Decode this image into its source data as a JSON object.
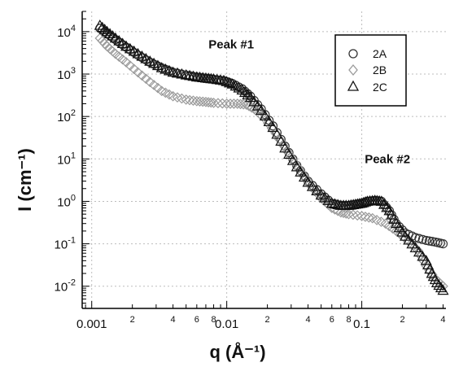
{
  "chart_data": {
    "type": "scatter",
    "title": "",
    "xlabel": "q (Å⁻¹)",
    "ylabel": "I (cm⁻¹)",
    "x_scale": "log",
    "y_scale": "log",
    "xlim": [
      0.00085,
      0.42
    ],
    "ylim": [
      0.003,
      30000
    ],
    "grid": true,
    "legend_position": "top-right",
    "x_major_ticks": [
      {
        "value": 0.001,
        "label": "0.001"
      },
      {
        "value": 0.01,
        "label": "0.01"
      },
      {
        "value": 0.1,
        "label": "0.1"
      }
    ],
    "x_minor_labels": [
      {
        "value": 0.002,
        "label": "2"
      },
      {
        "value": 0.004,
        "label": "4"
      },
      {
        "value": 0.006,
        "label": "6"
      },
      {
        "value": 0.008,
        "label": "8"
      },
      {
        "value": 0.02,
        "label": "2"
      },
      {
        "value": 0.04,
        "label": "4"
      },
      {
        "value": 0.06,
        "label": "6"
      },
      {
        "value": 0.08,
        "label": "8"
      },
      {
        "value": 0.2,
        "label": "2"
      },
      {
        "value": 0.4,
        "label": "4"
      }
    ],
    "y_ticks": [
      {
        "exp": 4,
        "label_base": "10",
        "label_exp": "4"
      },
      {
        "exp": 3,
        "label_base": "10",
        "label_exp": "3"
      },
      {
        "exp": 2,
        "label_base": "10",
        "label_exp": "2"
      },
      {
        "exp": 1,
        "label_base": "10",
        "label_exp": "1"
      },
      {
        "exp": 0,
        "label_base": "10",
        "label_exp": "0"
      },
      {
        "exp": -1,
        "label_base": "10",
        "label_exp": "-1"
      },
      {
        "exp": -2,
        "label_base": "10",
        "label_exp": "-2"
      }
    ],
    "annotations": [
      {
        "text": "Peak #1",
        "x": 0.0108,
        "y": 4000
      },
      {
        "text": "Peak #2",
        "x": 0.155,
        "y": 8
      }
    ],
    "series": [
      {
        "name": "2A",
        "marker": "circle",
        "color": "#333333",
        "points": [
          [
            0.00115,
            12000
          ],
          [
            0.0013,
            9000
          ],
          [
            0.0015,
            6500
          ],
          [
            0.0018,
            4300
          ],
          [
            0.0022,
            2800
          ],
          [
            0.0027,
            1900
          ],
          [
            0.0033,
            1400
          ],
          [
            0.004,
            1100
          ],
          [
            0.005,
            950
          ],
          [
            0.006,
            850
          ],
          [
            0.007,
            800
          ],
          [
            0.008,
            750
          ],
          [
            0.0095,
            700
          ],
          [
            0.011,
            600
          ],
          [
            0.013,
            450
          ],
          [
            0.015,
            300
          ],
          [
            0.018,
            150
          ],
          [
            0.022,
            60
          ],
          [
            0.027,
            20
          ],
          [
            0.033,
            7
          ],
          [
            0.04,
            3
          ],
          [
            0.05,
            1.5
          ],
          [
            0.06,
            0.9
          ],
          [
            0.07,
            0.8
          ],
          [
            0.08,
            0.8
          ],
          [
            0.09,
            0.85
          ],
          [
            0.1,
            0.9
          ],
          [
            0.11,
            1.0
          ],
          [
            0.125,
            1.05
          ],
          [
            0.14,
            1.0
          ],
          [
            0.16,
            0.6
          ],
          [
            0.18,
            0.3
          ],
          [
            0.21,
            0.18
          ],
          [
            0.25,
            0.14
          ],
          [
            0.3,
            0.12
          ],
          [
            0.35,
            0.11
          ],
          [
            0.4,
            0.1
          ]
        ]
      },
      {
        "name": "2B",
        "marker": "diamond",
        "color": "#9a9a9a",
        "points": [
          [
            0.00115,
            7000
          ],
          [
            0.0013,
            4500
          ],
          [
            0.0015,
            3000
          ],
          [
            0.0018,
            1900
          ],
          [
            0.0022,
            1100
          ],
          [
            0.0027,
            650
          ],
          [
            0.0033,
            400
          ],
          [
            0.004,
            300
          ],
          [
            0.005,
            250
          ],
          [
            0.006,
            230
          ],
          [
            0.007,
            220
          ],
          [
            0.008,
            210
          ],
          [
            0.01,
            200
          ],
          [
            0.012,
            200
          ],
          [
            0.014,
            190
          ],
          [
            0.016,
            150
          ],
          [
            0.019,
            90
          ],
          [
            0.023,
            40
          ],
          [
            0.028,
            15
          ],
          [
            0.034,
            6
          ],
          [
            0.041,
            2.5
          ],
          [
            0.05,
            1.2
          ],
          [
            0.06,
            0.7
          ],
          [
            0.07,
            0.55
          ],
          [
            0.08,
            0.5
          ],
          [
            0.1,
            0.45
          ],
          [
            0.12,
            0.4
          ],
          [
            0.15,
            0.3
          ],
          [
            0.18,
            0.2
          ],
          [
            0.22,
            0.12
          ],
          [
            0.26,
            0.07
          ],
          [
            0.3,
            0.03
          ],
          [
            0.35,
            0.015
          ],
          [
            0.4,
            0.01
          ]
        ]
      },
      {
        "name": "2C",
        "marker": "triangle",
        "color": "#111111",
        "points": [
          [
            0.00115,
            14000
          ],
          [
            0.0013,
            10000
          ],
          [
            0.0015,
            7000
          ],
          [
            0.0018,
            4500
          ],
          [
            0.0022,
            3000
          ],
          [
            0.0027,
            2000
          ],
          [
            0.0033,
            1400
          ],
          [
            0.004,
            1100
          ],
          [
            0.005,
            950
          ],
          [
            0.006,
            850
          ],
          [
            0.007,
            800
          ],
          [
            0.008,
            760
          ],
          [
            0.0095,
            700
          ],
          [
            0.011,
            580
          ],
          [
            0.013,
            420
          ],
          [
            0.015,
            280
          ],
          [
            0.018,
            140
          ],
          [
            0.022,
            55
          ],
          [
            0.027,
            18
          ],
          [
            0.033,
            6.5
          ],
          [
            0.04,
            2.8
          ],
          [
            0.05,
            1.4
          ],
          [
            0.06,
            0.9
          ],
          [
            0.07,
            0.8
          ],
          [
            0.08,
            0.8
          ],
          [
            0.09,
            0.85
          ],
          [
            0.1,
            0.9
          ],
          [
            0.11,
            1.0
          ],
          [
            0.125,
            1.05
          ],
          [
            0.14,
            1.0
          ],
          [
            0.16,
            0.6
          ],
          [
            0.18,
            0.3
          ],
          [
            0.21,
            0.15
          ],
          [
            0.25,
            0.08
          ],
          [
            0.3,
            0.04
          ],
          [
            0.33,
            0.02
          ],
          [
            0.36,
            0.012
          ],
          [
            0.4,
            0.008
          ]
        ]
      }
    ]
  }
}
